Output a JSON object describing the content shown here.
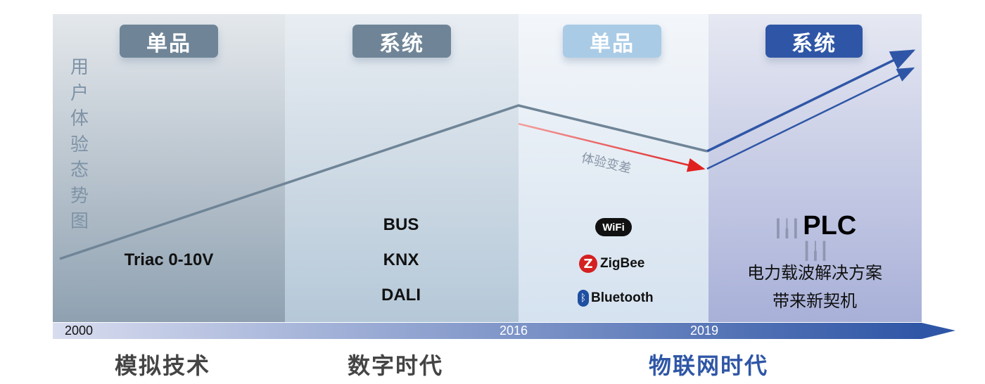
{
  "y_axis_label": "用户体验态势图",
  "panels": [
    {
      "badge": "单品",
      "badge_color": "#6f8597",
      "items": [
        "Triac 0-10V"
      ]
    },
    {
      "badge": "系统",
      "badge_color": "#6f8597",
      "items": [
        "BUS",
        "KNX",
        "DALI"
      ]
    },
    {
      "badge": "单品",
      "badge_color": "#a9cbe6",
      "logos": [
        "WiFi",
        "ZigBee",
        "Bluetooth"
      ]
    },
    {
      "badge": "系统",
      "badge_color": "#2f56a6",
      "logo": "PLC",
      "lines": [
        "电力载波解决方案",
        "带来新契机"
      ]
    }
  ],
  "annotation": "体验变差",
  "timeline": {
    "years": [
      "2000",
      "2016",
      "2019"
    ]
  },
  "eras": [
    "模拟技术",
    "数字时代",
    "物联网时代"
  ],
  "colors": {
    "trend": "#6f8597",
    "decline": "#e02020",
    "growth": "#2f56a6",
    "era_highlight": "#2f56a6"
  }
}
